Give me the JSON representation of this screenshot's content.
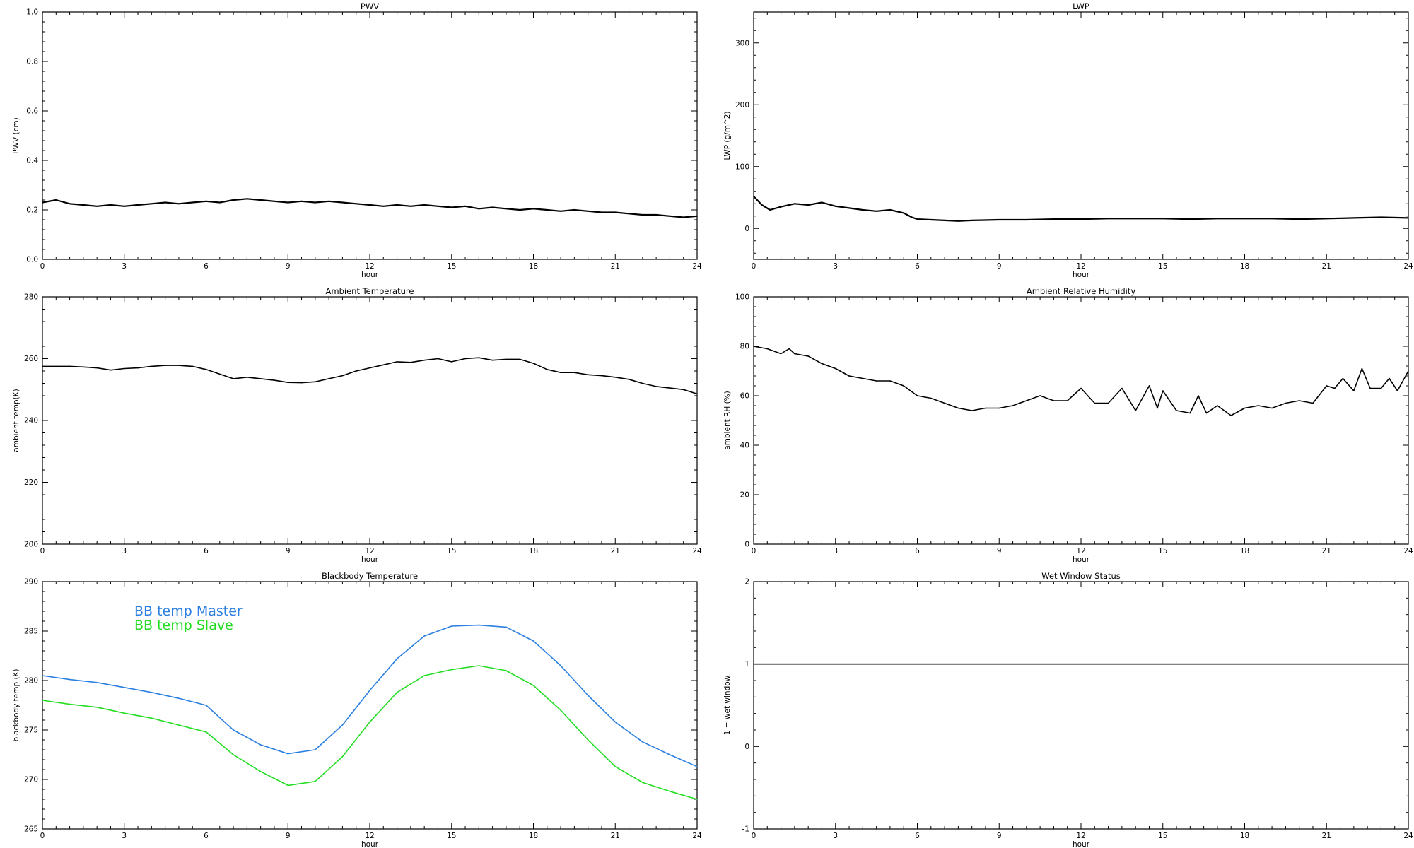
{
  "chart_data": [
    {
      "id": "pwv",
      "type": "line",
      "title": "PWV",
      "xlabel": "hour",
      "ylabel": "PWV (cm)",
      "xlim": [
        0,
        24
      ],
      "ylim": [
        0.0,
        1.0
      ],
      "xticks": [
        "0",
        "3",
        "6",
        "9",
        "12",
        "15",
        "18",
        "21",
        "24"
      ],
      "yticks": [
        "0.0",
        "0.2",
        "0.4",
        "0.6",
        "0.8",
        "1.0"
      ],
      "grid": false,
      "series": [
        {
          "color": "#000000",
          "x": [
            0,
            0.5,
            1,
            1.5,
            2,
            2.5,
            3,
            3.5,
            4,
            4.5,
            5,
            5.5,
            6,
            6.5,
            7,
            7.5,
            8,
            8.5,
            9,
            9.5,
            10,
            10.5,
            11,
            11.5,
            12,
            12.5,
            13,
            13.5,
            14,
            14.5,
            15,
            15.5,
            16,
            16.5,
            17,
            17.5,
            18,
            18.5,
            19,
            19.5,
            20,
            20.5,
            21,
            21.5,
            22,
            22.5,
            23,
            23.5,
            24
          ],
          "y": [
            0.23,
            0.24,
            0.225,
            0.22,
            0.215,
            0.22,
            0.215,
            0.22,
            0.225,
            0.23,
            0.225,
            0.23,
            0.235,
            0.23,
            0.24,
            0.245,
            0.24,
            0.235,
            0.23,
            0.235,
            0.23,
            0.235,
            0.23,
            0.225,
            0.22,
            0.215,
            0.22,
            0.215,
            0.22,
            0.215,
            0.21,
            0.215,
            0.205,
            0.21,
            0.205,
            0.2,
            0.205,
            0.2,
            0.195,
            0.2,
            0.195,
            0.19,
            0.19,
            0.185,
            0.18,
            0.18,
            0.175,
            0.17,
            0.175
          ]
        }
      ]
    },
    {
      "id": "lwp",
      "type": "line",
      "title": "LWP",
      "xlabel": "hour",
      "ylabel": "LWP (g/m^2)",
      "xlim": [
        0,
        24
      ],
      "ylim": [
        -50,
        350
      ],
      "xticks": [
        "0",
        "3",
        "6",
        "9",
        "12",
        "15",
        "18",
        "21",
        "24"
      ],
      "yticks": [
        "0",
        "100",
        "200",
        "300"
      ],
      "grid": false,
      "series": [
        {
          "color": "#000000",
          "x": [
            0,
            0.3,
            0.6,
            1,
            1.5,
            2,
            2.5,
            3,
            3.5,
            4,
            4.5,
            5,
            5.5,
            5.8,
            6,
            6.5,
            7,
            7.5,
            8,
            9,
            10,
            11,
            12,
            13,
            14,
            15,
            16,
            17,
            18,
            19,
            20,
            21,
            22,
            23,
            24
          ],
          "y": [
            52,
            38,
            30,
            35,
            40,
            38,
            42,
            36,
            33,
            30,
            28,
            30,
            25,
            18,
            15,
            14,
            13,
            12,
            13,
            14,
            14,
            15,
            15,
            16,
            16,
            16,
            15,
            16,
            16,
            16,
            15,
            16,
            17,
            18,
            17
          ]
        }
      ]
    },
    {
      "id": "ambient_temperature",
      "type": "line",
      "title": "Ambient Temperature",
      "xlabel": "hour",
      "ylabel": "ambient temp(K)",
      "xlim": [
        0,
        24
      ],
      "ylim": [
        200,
        280
      ],
      "xticks": [
        "0",
        "3",
        "6",
        "9",
        "12",
        "15",
        "18",
        "21",
        "24"
      ],
      "yticks": [
        "200",
        "220",
        "240",
        "260",
        "280"
      ],
      "grid": false,
      "series": [
        {
          "color": "#000000",
          "x": [
            0,
            0.5,
            1,
            1.5,
            2,
            2.5,
            3,
            3.5,
            4,
            4.5,
            5,
            5.5,
            6,
            6.5,
            7,
            7.5,
            8,
            8.5,
            9,
            9.5,
            10,
            10.5,
            11,
            11.5,
            12,
            12.5,
            13,
            13.5,
            14,
            14.5,
            15,
            15.5,
            16,
            16.5,
            17,
            17.5,
            18,
            18.5,
            19,
            19.5,
            20,
            20.5,
            21,
            21.5,
            22,
            22.5,
            23,
            23.5,
            24
          ],
          "y": [
            257.5,
            257.5,
            257.5,
            257.3,
            257,
            256.3,
            256.8,
            257.0,
            257.5,
            257.8,
            257.8,
            257.5,
            256.5,
            255,
            253.5,
            254,
            253.5,
            253,
            252.3,
            252.2,
            252.5,
            253.5,
            254.5,
            256,
            257,
            258,
            259,
            258.8,
            259.5,
            260,
            259,
            260,
            260.3,
            259.5,
            259.8,
            259.8,
            258.5,
            256.5,
            255.5,
            255.5,
            254.8,
            254.5,
            254.0,
            253.3,
            252.0,
            251.0,
            250.5,
            250.0,
            248.6
          ]
        }
      ]
    },
    {
      "id": "ambient_rh",
      "type": "line",
      "title": "Ambient Relative Humidity",
      "xlabel": "hour",
      "ylabel": "ambient RH (%)",
      "xlim": [
        0,
        24
      ],
      "ylim": [
        0,
        100
      ],
      "xticks": [
        "0",
        "3",
        "6",
        "9",
        "12",
        "15",
        "18",
        "21",
        "24"
      ],
      "yticks": [
        "0",
        "20",
        "40",
        "60",
        "80",
        "100"
      ],
      "grid": false,
      "series": [
        {
          "color": "#000000",
          "x": [
            0,
            0.5,
            1,
            1.3,
            1.5,
            2,
            2.5,
            3,
            3.5,
            4,
            4.5,
            5,
            5.5,
            6,
            6.5,
            7,
            7.5,
            8,
            8.5,
            9,
            9.5,
            10,
            10.5,
            11,
            11.5,
            12,
            12.5,
            13,
            13.5,
            14,
            14.3,
            14.5,
            14.8,
            15,
            15.5,
            16,
            16.3,
            16.6,
            17,
            17.5,
            18,
            18.5,
            19,
            19.5,
            20,
            20.5,
            21,
            21.3,
            21.6,
            22,
            22.3,
            22.6,
            23,
            23.3,
            23.6,
            24
          ],
          "y": [
            80,
            79,
            77,
            79,
            77,
            76,
            73,
            71,
            68,
            67,
            66,
            66,
            64,
            60,
            59,
            57,
            55,
            54,
            55,
            55,
            56,
            58,
            60,
            58,
            58,
            63,
            57,
            57,
            63,
            54,
            60,
            64,
            55,
            62,
            54,
            53,
            60,
            53,
            56,
            52,
            55,
            56,
            55,
            57,
            58,
            57,
            64,
            63,
            67,
            62,
            71,
            63,
            63,
            67,
            62,
            70
          ]
        }
      ]
    },
    {
      "id": "blackbody_temperature",
      "type": "line",
      "title": "Blackbody Temperature",
      "xlabel": "hour",
      "ylabel": "blackbody temp (K)",
      "xlim": [
        0,
        24
      ],
      "ylim": [
        265,
        290
      ],
      "xticks": [
        "0",
        "3",
        "6",
        "9",
        "12",
        "15",
        "18",
        "21",
        "24"
      ],
      "yticks": [
        "265",
        "270",
        "275",
        "280",
        "285",
        "290"
      ],
      "grid": false,
      "legend": "top-left",
      "series": [
        {
          "name": "BB temp Master",
          "color": "#2a7fe0",
          "x": [
            0,
            1,
            2,
            3,
            4,
            5,
            6,
            7,
            8,
            9,
            10,
            11,
            12,
            13,
            14,
            15,
            16,
            17,
            18,
            19,
            20,
            21,
            22,
            23,
            24
          ],
          "y": [
            280.5,
            280.1,
            279.8,
            279.3,
            278.8,
            278.2,
            277.5,
            275.0,
            273.5,
            272.6,
            273.0,
            275.5,
            279.0,
            282.2,
            284.5,
            285.5,
            285.6,
            285.4,
            284.0,
            281.5,
            278.5,
            275.8,
            273.8,
            272.5,
            271.3
          ]
        },
        {
          "name": "BB temp Slave",
          "color": "#22dd22",
          "x": [
            0,
            1,
            2,
            3,
            4,
            5,
            6,
            7,
            8,
            9,
            10,
            11,
            12,
            13,
            14,
            15,
            16,
            17,
            18,
            19,
            20,
            21,
            22,
            23,
            24
          ],
          "y": [
            278.0,
            277.6,
            277.3,
            276.7,
            276.2,
            275.5,
            274.8,
            272.5,
            270.8,
            269.4,
            269.8,
            272.3,
            275.8,
            278.8,
            280.5,
            281.1,
            281.5,
            281.0,
            279.5,
            277.0,
            274.0,
            271.3,
            269.7,
            268.8,
            268.0
          ]
        }
      ]
    },
    {
      "id": "wet_window",
      "type": "line",
      "title": "Wet Window Status",
      "xlabel": "hour",
      "ylabel": "1 = wet window",
      "xlim": [
        0,
        24
      ],
      "ylim": [
        -1,
        2
      ],
      "xticks": [
        "0",
        "3",
        "6",
        "9",
        "12",
        "15",
        "18",
        "21",
        "24"
      ],
      "yticks": [
        "-1",
        "0",
        "1",
        "2"
      ],
      "grid": false,
      "series": [
        {
          "color": "#000000",
          "x": [
            0,
            24
          ],
          "y": [
            1,
            1
          ]
        }
      ]
    }
  ]
}
